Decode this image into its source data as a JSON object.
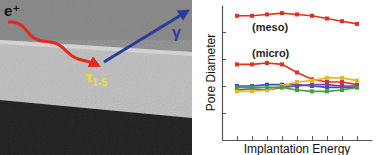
{
  "chart_data": {
    "type": "line",
    "x_label": "Implantation Energy",
    "y_label": "Pore Diameter",
    "x": [
      1,
      2,
      3,
      4,
      5,
      6,
      7,
      8,
      9
    ],
    "xlim": [
      0,
      10
    ],
    "xticks": [
      1,
      2,
      3,
      4,
      5,
      6,
      7,
      8,
      9
    ],
    "ylim": [
      0,
      10
    ],
    "yticks": [
      2,
      4,
      6,
      8
    ],
    "tick_labels": false,
    "marker": "square",
    "series": [
      {
        "name": "(meso)",
        "color": "#e0301e",
        "values": [
          9.2,
          9.2,
          9.3,
          9.4,
          9.3,
          9.2,
          9.0,
          8.8,
          8.6
        ]
      },
      {
        "name": "(micro)",
        "color": "#e0301e",
        "values": [
          5.6,
          5.6,
          5.7,
          5.6,
          5.0,
          4.5,
          4.3,
          4.3,
          4.1
        ]
      },
      {
        "color": "#3050c8",
        "values": [
          4.0,
          4.0,
          4.1,
          4.1,
          4.1,
          4.0,
          3.9,
          3.9,
          3.9
        ]
      },
      {
        "color": "#8040a0",
        "values": [
          3.7,
          3.8,
          3.7,
          3.9,
          4.0,
          4.1,
          4.1,
          4.0,
          4.0
        ]
      },
      {
        "color": "#e8b820",
        "values": [
          3.6,
          3.6,
          3.7,
          4.0,
          4.3,
          4.4,
          4.6,
          4.6,
          4.4
        ]
      },
      {
        "color": "#40a040",
        "values": [
          3.9,
          3.9,
          3.9,
          3.9,
          3.7,
          3.6,
          3.6,
          3.7,
          3.9
        ]
      }
    ]
  },
  "illustration": {
    "positron": "e⁺",
    "photon": "γ",
    "lifetime_symbol": "τ",
    "lifetime_index": "1-5"
  }
}
